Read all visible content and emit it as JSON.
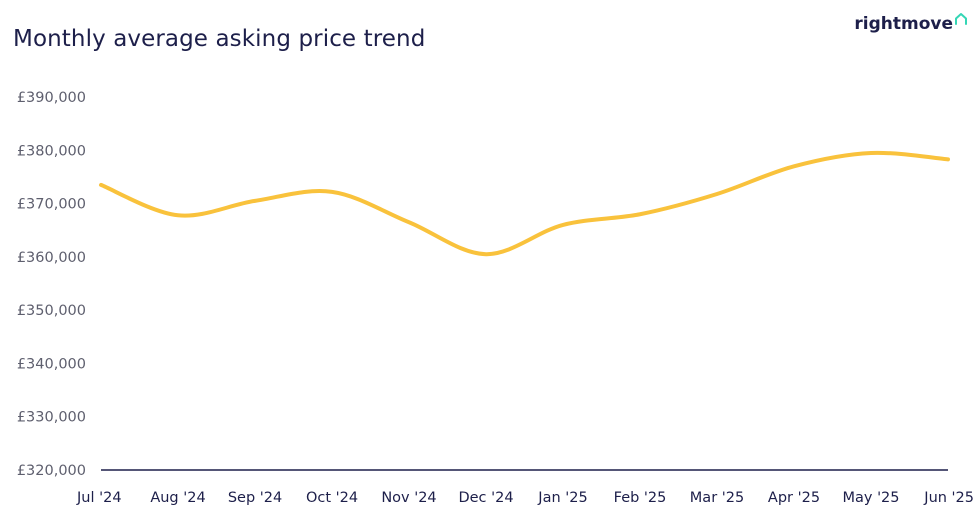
{
  "header": {
    "title": "Monthly average asking price trend",
    "logo_text": "rightmove",
    "logo_icon": "house-outline-icon",
    "logo_icon_color": "#34d6b5"
  },
  "chart_data": {
    "type": "line",
    "title": "Monthly average asking price trend",
    "xlabel": "",
    "ylabel": "",
    "categories": [
      "Jul '24",
      "Aug '24",
      "Sep '24",
      "Oct '24",
      "Nov '24",
      "Dec '24",
      "Jan '25",
      "Feb '25",
      "Mar '25",
      "Apr '25",
      "May '25",
      "Jun '25"
    ],
    "ylim": [
      320000,
      390000
    ],
    "yticks": [
      320000,
      330000,
      340000,
      350000,
      360000,
      370000,
      380000,
      390000
    ],
    "ytick_labels": [
      "£320,000",
      "£330,000",
      "£340,000",
      "£350,000",
      "£360,000",
      "£370,000",
      "£380,000",
      "£390,000"
    ],
    "grid": false,
    "legend": "none",
    "series": [
      {
        "color": "#f9c23c",
        "values": [
          373500,
          367800,
          370500,
          372200,
          366500,
          360500,
          366000,
          368000,
          371800,
          377000,
          379500,
          378300
        ]
      }
    ],
    "axis_color": "#1d1f4a"
  }
}
